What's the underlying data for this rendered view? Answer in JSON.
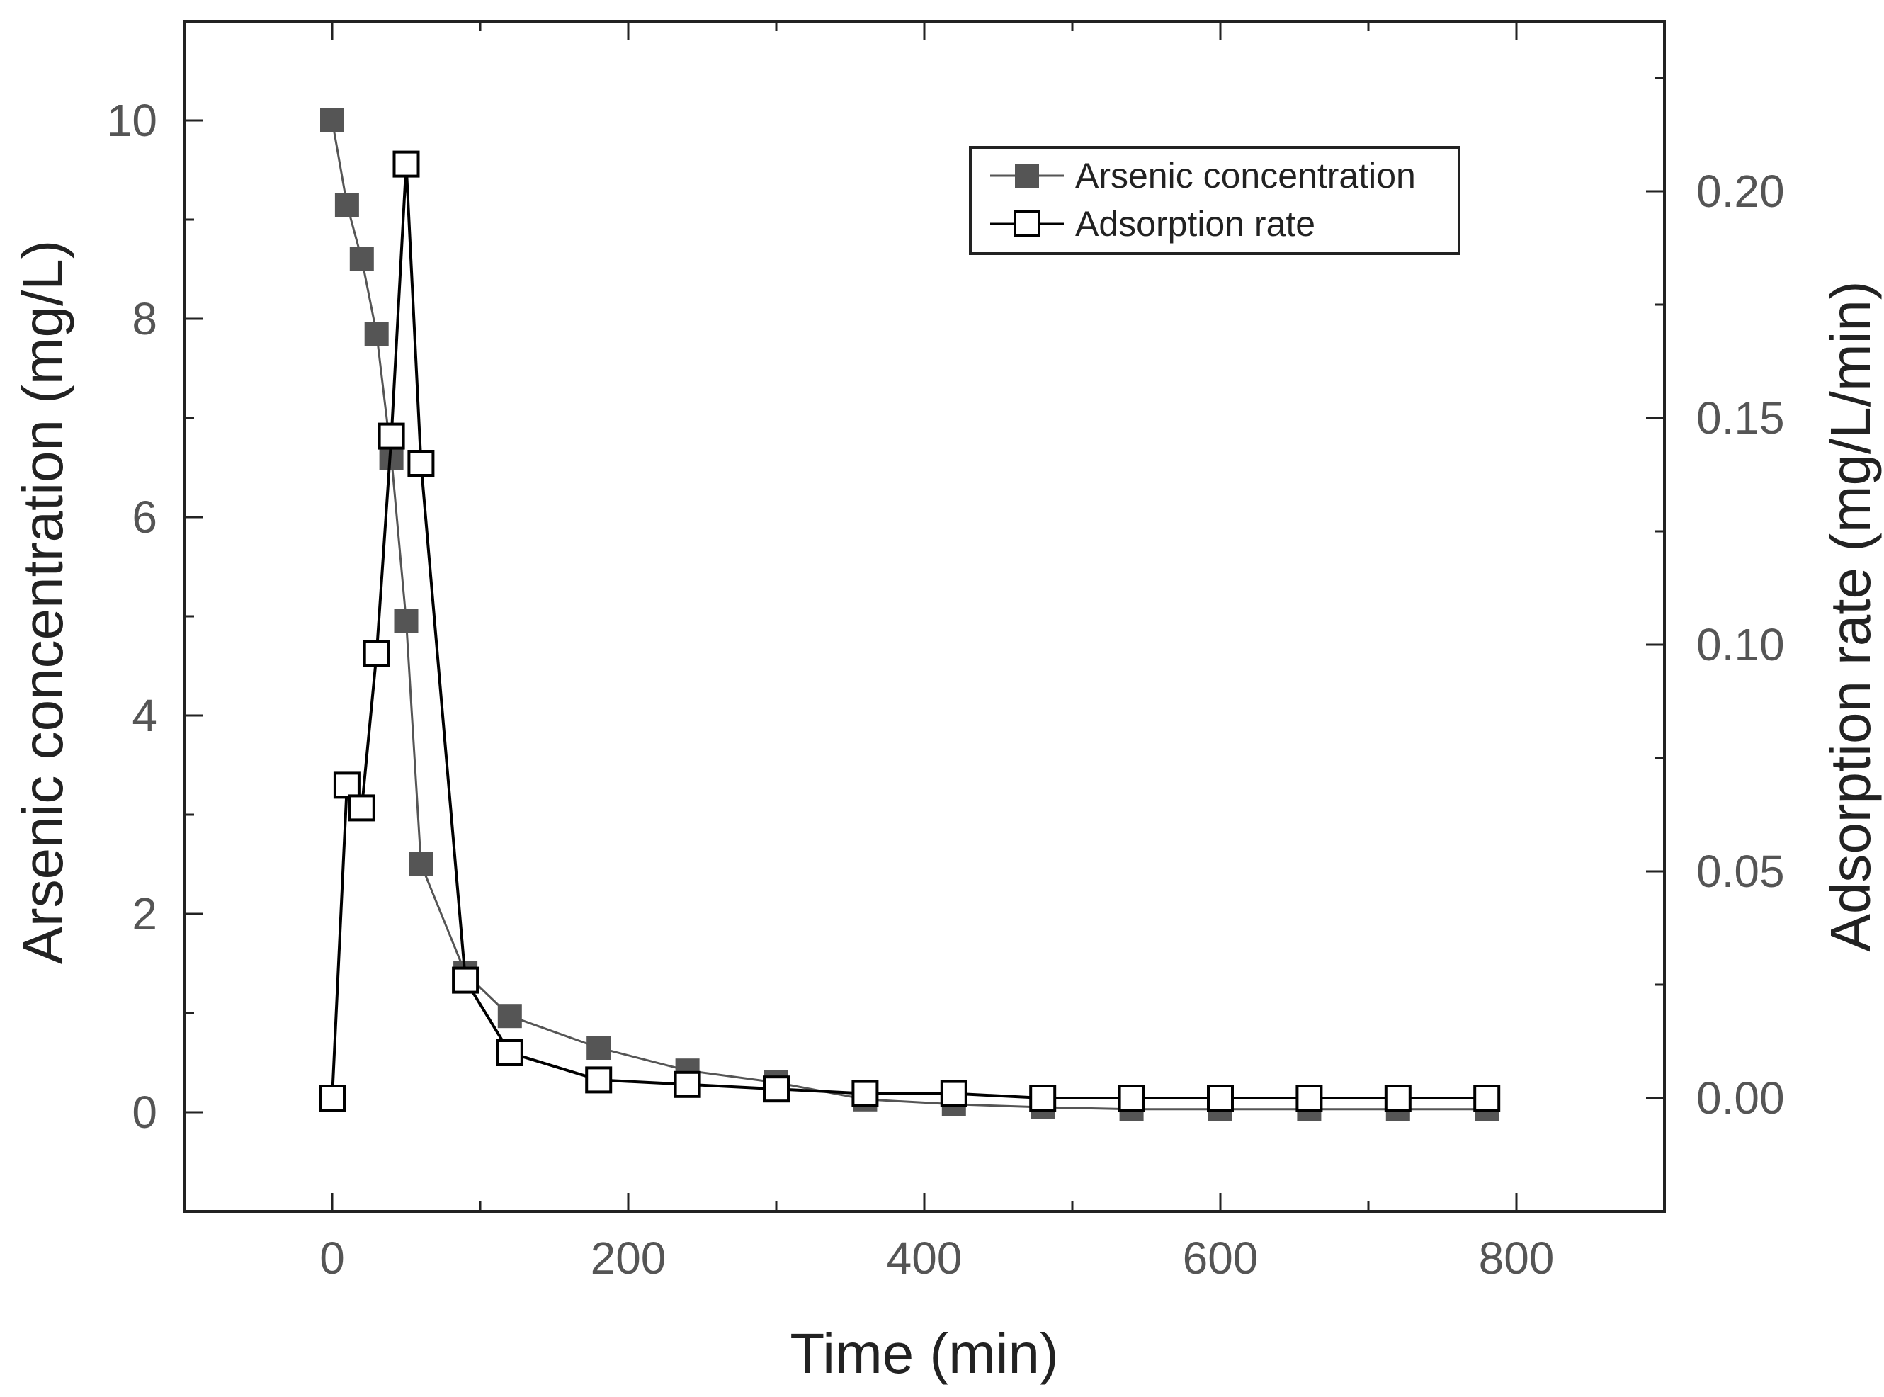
{
  "chart_data": {
    "type": "line",
    "xlabel": "Time (min)",
    "ylabel_left": "Arsenic concentration (mg/L)",
    "ylabel_right": "Adsorption rate (mg/L/min)",
    "xlim": [
      -100,
      900
    ],
    "ylim_left": [
      -1,
      11
    ],
    "ylim_right": [
      -0.025,
      0.2375
    ],
    "x_ticks": [
      0,
      200,
      400,
      600,
      800
    ],
    "y_left_ticks": [
      0,
      2,
      4,
      6,
      8,
      10
    ],
    "y_right_ticks": [
      0.0,
      0.05,
      0.1,
      0.15,
      0.2
    ],
    "x_tick_labels": [
      "0",
      "200",
      "400",
      "600",
      "800"
    ],
    "y_left_tick_labels": [
      "0",
      "2",
      "4",
      "6",
      "8",
      "10"
    ],
    "y_right_tick_labels": [
      "0.00",
      "0.05",
      "0.10",
      "0.15",
      "0.20"
    ],
    "grid": false,
    "legend_position": "top-right",
    "series": [
      {
        "name": "Arsenic concentration",
        "axis": "left",
        "marker": "filled-square",
        "color": "#555555",
        "x": [
          0,
          10,
          20,
          30,
          40,
          50,
          60,
          90,
          120,
          180,
          240,
          300,
          360,
          420,
          480,
          540,
          600,
          660,
          720,
          780
        ],
        "y": [
          10.0,
          9.15,
          8.6,
          7.85,
          6.6,
          4.95,
          2.5,
          1.4,
          0.97,
          0.65,
          0.42,
          0.3,
          0.13,
          0.08,
          0.05,
          0.03,
          0.03,
          0.03,
          0.03,
          0.03
        ]
      },
      {
        "name": "Adsorption rate",
        "axis": "right",
        "marker": "open-square",
        "color": "#000000",
        "x": [
          0,
          10,
          20,
          30,
          40,
          50,
          60,
          90,
          120,
          180,
          240,
          300,
          360,
          420,
          480,
          540,
          600,
          660,
          720,
          780
        ],
        "y": [
          0.0,
          0.069,
          0.064,
          0.098,
          0.146,
          0.206,
          0.14,
          0.026,
          0.01,
          0.004,
          0.003,
          0.002,
          0.001,
          0.001,
          0.0,
          0.0,
          0.0,
          0.0,
          0.0,
          0.0
        ]
      }
    ]
  }
}
